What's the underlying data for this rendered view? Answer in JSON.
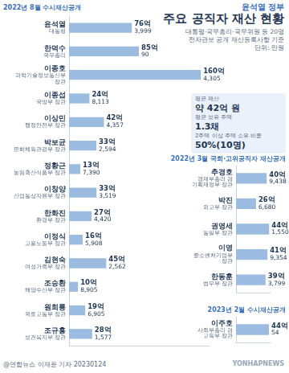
{
  "header": {
    "kicker": "윤석열 정부",
    "title": "주요 공직자 재산 현황",
    "notes": [
      "대통령·국무총리·국무위원 등 20명",
      "전자관보 공개 재산등록사항 기준",
      "단위: 만원"
    ]
  },
  "summary": [
    {
      "label": "평균 재산",
      "value": "약 42억 원"
    },
    {
      "label": "평균 보유 주택",
      "value": "1.3채"
    },
    {
      "label": "2주택 이상 주택 소유 비중",
      "value": "50%(10명)"
    }
  ],
  "chart_data": [
    {
      "type": "bar",
      "orientation": "horizontal",
      "title": "2022년 8월 수시재산공개",
      "categories": [
        "윤석열",
        "한덕수",
        "이종호",
        "이종섭",
        "이상민",
        "박보균",
        "정황근",
        "이창양",
        "한화진",
        "이정식",
        "김현숙",
        "조승환",
        "원희룡",
        "조규홍"
      ],
      "roles": [
        "대통령",
        "국무총리",
        "과학기술정보통신부 장관",
        "국방부 장관",
        "행정안전부 장관",
        "문화체육관광부 장관",
        "농림축산식품부 장관",
        "산업통상자원부 장관",
        "환경부 장관",
        "고용노동부 장관",
        "여성가족부 장관",
        "해양수산부 장관",
        "국토교통부 장관",
        "보건복지부 장관"
      ],
      "values": [
        763999,
        850090,
        1604305,
        248113,
        424357,
        332594,
        137390,
        333519,
        274420,
        165908,
        452562,
        108905,
        196905,
        281577
      ],
      "value_labels": [
        "76억 3,999",
        "85억 90",
        "160억 4,305",
        "24억 8,113",
        "42억 4,357",
        "33억 2,594",
        "13억 7,390",
        "33억 3,519",
        "27억 4,420",
        "16억 5,908",
        "45억 2,562",
        "10억 8,905",
        "19억 6,905",
        "28억 1,577"
      ],
      "color": "#9cbbe0",
      "xlim": [
        0,
        1700000
      ],
      "grid": false,
      "data_labels": true,
      "tick_labels": "y"
    },
    {
      "type": "bar",
      "orientation": "horizontal",
      "title": "2022년 3월 국회·고위공직자 재산공개",
      "categories": [
        "추경호",
        "박진",
        "권영세",
        "이영",
        "한동훈"
      ],
      "roles": [
        "경제부총리 겸 기획재정부 장관",
        "외교부 장관",
        "통일부 장관",
        "중소벤처기업부 장관",
        "법무부 장관"
      ],
      "values": [
        409438,
        266680,
        441550,
        419354,
        393799
      ],
      "value_labels": [
        "40억 9,438",
        "26억 6,680",
        "44억 1,550",
        "41억 9,354",
        "39억 3,799"
      ],
      "color": "#9cbbe0",
      "xlim": [
        0,
        450000
      ],
      "grid": false,
      "data_labels": true,
      "tick_labels": "y"
    },
    {
      "type": "bar",
      "orientation": "horizontal",
      "title": "2023년 2월 수시재산공개",
      "categories": [
        "이주호"
      ],
      "roles": [
        "사회부총리 겸 교육부 장관"
      ],
      "values": [
        440054
      ],
      "value_labels": [
        "44억 54"
      ],
      "color": "#9cbbe0",
      "xlim": [
        0,
        450000
      ],
      "grid": false,
      "data_labels": true,
      "tick_labels": "y"
    }
  ],
  "footer": {
    "source": "@연합뉴스",
    "credit": "이재윤 기자 20230124",
    "watermark": "YONHAPNEWS"
  }
}
